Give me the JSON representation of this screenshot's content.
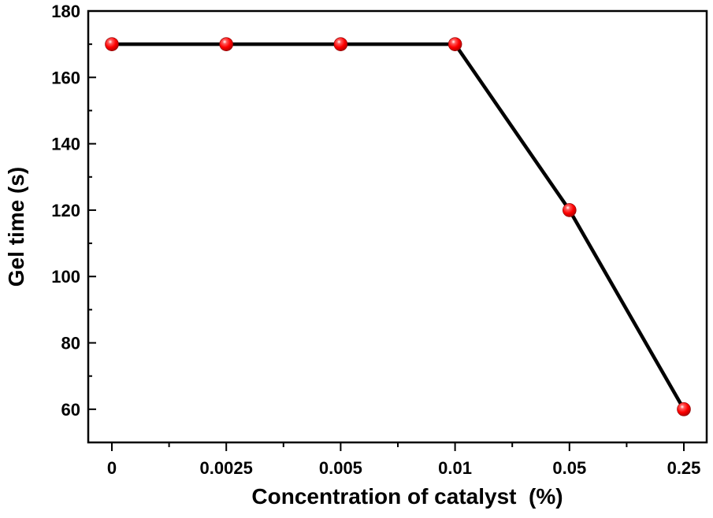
{
  "chart_data": {
    "type": "line",
    "categories": [
      "0",
      "0.0025",
      "0.005",
      "0.01",
      "0.05",
      "0.25"
    ],
    "series": [
      {
        "values": [
          170,
          170,
          170,
          170,
          120,
          60
        ]
      }
    ],
    "xlabel": "Concentration of catalyst  (%)",
    "ylabel": "Gel time (s)",
    "ylim": [
      50,
      180
    ],
    "yticks": [
      60,
      80,
      100,
      120,
      140,
      160,
      180
    ],
    "grid": false,
    "legend": "none",
    "colors": {
      "line": "#000000",
      "marker": "#ff0000",
      "axis": "#000000"
    }
  }
}
